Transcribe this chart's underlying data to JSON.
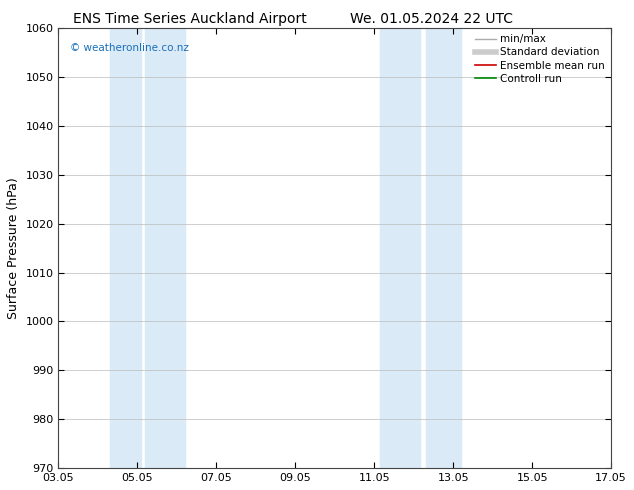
{
  "title_left": "ENS Time Series Auckland Airport",
  "title_right": "We. 01.05.2024 22 UTC",
  "ylabel": "Surface Pressure (hPa)",
  "ylim": [
    970,
    1060
  ],
  "yticks": [
    970,
    980,
    990,
    1000,
    1010,
    1020,
    1030,
    1040,
    1050,
    1060
  ],
  "xtick_labels": [
    "03.05",
    "05.05",
    "07.05",
    "09.05",
    "11.05",
    "13.05",
    "15.05",
    "17.05"
  ],
  "xtick_positions": [
    0,
    2,
    4,
    6,
    8,
    10,
    12,
    14
  ],
  "xlim": [
    0,
    14
  ],
  "shaded_bands": [
    {
      "x_start": 1.3,
      "x_end": 2.1
    },
    {
      "x_start": 2.2,
      "x_end": 3.2
    },
    {
      "x_start": 8.15,
      "x_end": 9.15
    },
    {
      "x_start": 9.3,
      "x_end": 10.2
    }
  ],
  "shade_color": "#daeaf6",
  "legend_labels": [
    "min/max",
    "Standard deviation",
    "Ensemble mean run",
    "Controll run"
  ],
  "legend_line_colors": [
    "#aaaaaa",
    "#cccccc",
    "#cc0000",
    "#008800"
  ],
  "watermark": "© weatheronline.co.nz",
  "watermark_color": "#1a6fbb",
  "background_color": "#ffffff",
  "plot_bg_color": "#ffffff",
  "grid_color": "#bbbbbb",
  "title_fontsize": 10,
  "axis_label_fontsize": 9,
  "tick_fontsize": 8,
  "legend_fontsize": 7.5
}
